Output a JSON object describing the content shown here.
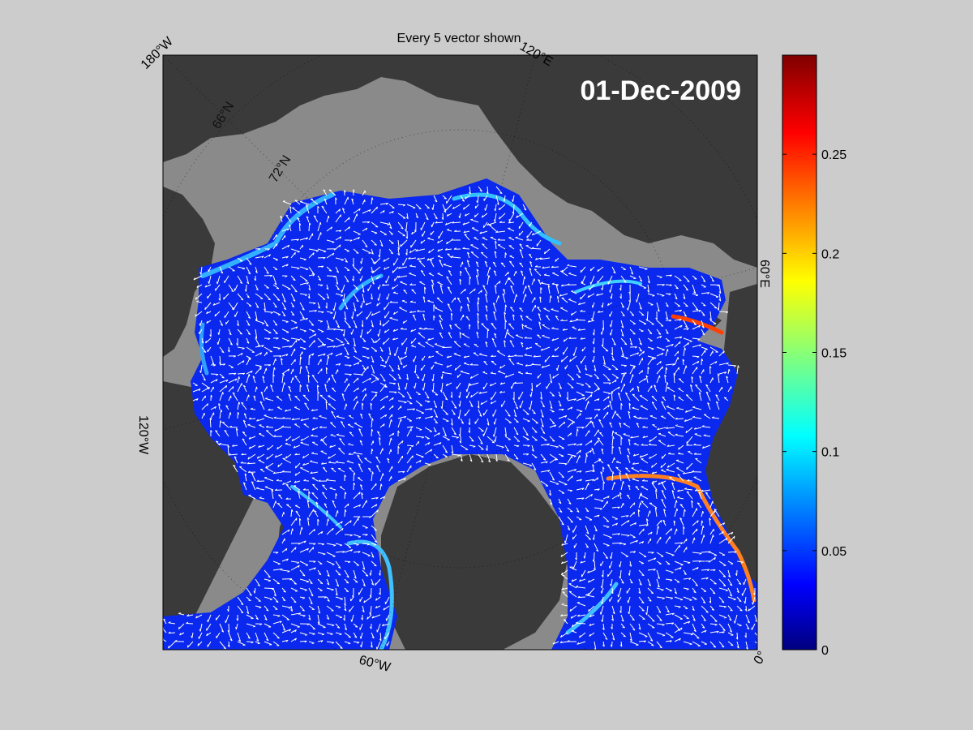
{
  "title": "Every 5 vector shown",
  "date_label": "01-Dec-2009",
  "longitude_labels": {
    "w180": "180°W",
    "e120": "120°E",
    "e60": "60°E",
    "w120": "120°W",
    "w60": "60°W",
    "zero": "0°"
  },
  "latitude_labels": [
    "72°N",
    "66°N"
  ],
  "colorbar": {
    "min": 0,
    "max": 0.3,
    "ticks": [
      "0",
      "0.05",
      "0.1",
      "0.15",
      "0.2",
      "0.25"
    ],
    "colormap": "jet"
  },
  "colors": {
    "figure_bg": "#cccccc",
    "land": "#3a3a3a",
    "no_data_ocean": "#8a8a8a",
    "ice": "#0a28ee",
    "vectors": "#ffffff"
  }
}
